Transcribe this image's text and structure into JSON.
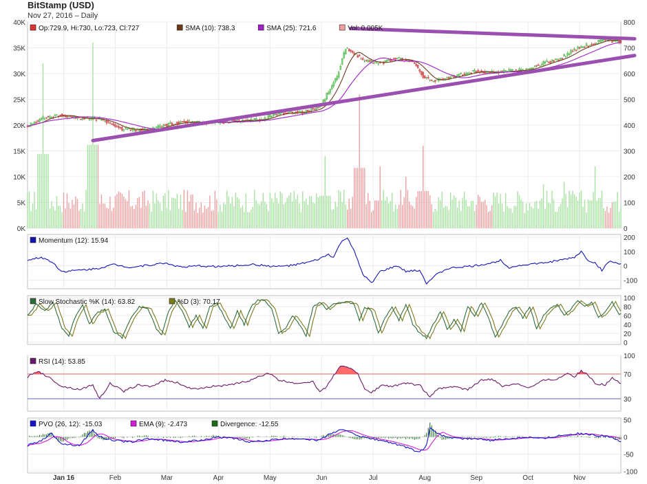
{
  "header": {
    "title": "BitStamp (USD)",
    "subtitle": "Nov 27, 2016 – Daily"
  },
  "colors": {
    "up": "#7fd37a",
    "down": "#e06767",
    "sma10": "#6b3a1a",
    "sma25": "#a020c8",
    "trend": "#9b4fb0",
    "momentum": "#1414b4",
    "stoch_k": "#2f6b3a",
    "stoch_d": "#7a7a1a",
    "rsi": "#6a1a6a",
    "rsi_fill": "#ff5050",
    "pvo": "#1414c8",
    "ema": "#d21ed2",
    "divergence": "#1a6b1a",
    "volume_up": "#a6e3a0",
    "volume_down": "#f0a0a0"
  },
  "chart_data": [
    {
      "id": "price",
      "type": "candlestick",
      "legend": [
        {
          "label": "Op:729.9, Hi:730, Lo:723, Cl:727",
          "color": "#e03030"
        },
        {
          "label": "SMA (10): 738.3",
          "color": "#6b3a1a"
        },
        {
          "label": "SMA (25): 721.6",
          "color": "#a020c8"
        },
        {
          "label": "Vol: 0.005K",
          "color": "#f0a0a0"
        }
      ],
      "x_labels": [
        "Jan 16",
        "Feb",
        "Mar",
        "Apr",
        "May",
        "Jun",
        "Jul",
        "Aug",
        "Sep",
        "Oct",
        "Nov"
      ],
      "y_left_ticks": [
        "0K",
        "5K",
        "10K",
        "15K",
        "20K",
        "25K",
        "30K",
        "35K",
        "40K"
      ],
      "y_right_ticks": [
        0,
        100,
        200,
        300,
        400,
        500,
        600,
        700,
        800
      ],
      "ylim_price": [
        0,
        800
      ],
      "ylim_volume": [
        0,
        40000
      ],
      "price_anchors": [
        [
          0,
          395
        ],
        [
          10,
          430
        ],
        [
          20,
          440
        ],
        [
          30,
          425
        ],
        [
          40,
          425
        ],
        [
          45,
          415
        ],
        [
          55,
          385
        ],
        [
          70,
          380
        ],
        [
          80,
          400
        ],
        [
          90,
          412
        ],
        [
          110,
          410
        ],
        [
          125,
          418
        ],
        [
          135,
          420
        ],
        [
          145,
          445
        ],
        [
          160,
          450
        ],
        [
          170,
          470
        ],
        [
          175,
          530
        ],
        [
          180,
          590
        ],
        [
          185,
          700
        ],
        [
          190,
          680
        ],
        [
          195,
          650
        ],
        [
          205,
          640
        ],
        [
          215,
          660
        ],
        [
          225,
          640
        ],
        [
          230,
          590
        ],
        [
          235,
          570
        ],
        [
          245,
          585
        ],
        [
          255,
          600
        ],
        [
          260,
          610
        ],
        [
          270,
          603
        ],
        [
          280,
          610
        ],
        [
          290,
          615
        ],
        [
          300,
          640
        ],
        [
          310,
          660
        ],
        [
          320,
          700
        ],
        [
          330,
          720
        ],
        [
          335,
          735
        ],
        [
          340,
          725
        ]
      ],
      "volume_spikes": [
        [
          9,
          32000
        ],
        [
          38,
          36000
        ],
        [
          173,
          14000
        ],
        [
          193,
          26000
        ],
        [
          205,
          12000
        ],
        [
          220,
          10000
        ],
        [
          230,
          16000
        ],
        [
          300,
          8500
        ],
        [
          312,
          9000
        ],
        [
          330,
          12000
        ]
      ],
      "trendlines": [
        {
          "x": [
            38,
            345
          ],
          "y": [
            340,
            670
          ]
        },
        {
          "x": [
            188,
            345
          ],
          "y": [
            775,
            735
          ]
        }
      ]
    },
    {
      "id": "momentum",
      "type": "line",
      "legend": [
        {
          "label": "Momentum (12): 15.94",
          "color": "#1414b4"
        }
      ],
      "y_ticks": [
        200,
        100,
        0,
        -100
      ],
      "ylim": [
        -160,
        220
      ],
      "anchors": [
        [
          0,
          40
        ],
        [
          8,
          60
        ],
        [
          14,
          30
        ],
        [
          20,
          -40
        ],
        [
          30,
          -30
        ],
        [
          40,
          -20
        ],
        [
          50,
          10
        ],
        [
          60,
          -10
        ],
        [
          70,
          5
        ],
        [
          80,
          20
        ],
        [
          90,
          -10
        ],
        [
          100,
          0
        ],
        [
          110,
          -5
        ],
        [
          120,
          0
        ],
        [
          130,
          10
        ],
        [
          145,
          -5
        ],
        [
          155,
          5
        ],
        [
          165,
          30
        ],
        [
          170,
          50
        ],
        [
          175,
          80
        ],
        [
          178,
          60
        ],
        [
          182,
          160
        ],
        [
          186,
          200
        ],
        [
          190,
          100
        ],
        [
          195,
          -60
        ],
        [
          200,
          -120
        ],
        [
          205,
          -40
        ],
        [
          210,
          -20
        ],
        [
          215,
          0
        ],
        [
          220,
          -40
        ],
        [
          228,
          -30
        ],
        [
          232,
          -120
        ],
        [
          238,
          -60
        ],
        [
          244,
          -20
        ],
        [
          250,
          -10
        ],
        [
          260,
          0
        ],
        [
          270,
          20
        ],
        [
          275,
          40
        ],
        [
          280,
          -10
        ],
        [
          290,
          10
        ],
        [
          300,
          20
        ],
        [
          310,
          40
        ],
        [
          318,
          60
        ],
        [
          322,
          100
        ],
        [
          326,
          40
        ],
        [
          330,
          20
        ],
        [
          334,
          -30
        ],
        [
          338,
          30
        ],
        [
          345,
          15
        ]
      ]
    },
    {
      "id": "stochastic",
      "type": "line",
      "legend": [
        {
          "label": "Slow Stochastic %K (14): 63.82",
          "color": "#2f6b3a"
        },
        {
          "label": "%D (3): 70.17",
          "color": "#7a7a1a"
        }
      ],
      "y_ticks": [
        100,
        80,
        60,
        40,
        20,
        0
      ],
      "ylim": [
        -5,
        105
      ],
      "anchors": [
        [
          0,
          60
        ],
        [
          5,
          85
        ],
        [
          10,
          70
        ],
        [
          15,
          90
        ],
        [
          20,
          30
        ],
        [
          24,
          15
        ],
        [
          28,
          60
        ],
        [
          32,
          85
        ],
        [
          36,
          40
        ],
        [
          40,
          65
        ],
        [
          45,
          75
        ],
        [
          50,
          25
        ],
        [
          55,
          10
        ],
        [
          60,
          55
        ],
        [
          65,
          80
        ],
        [
          70,
          75
        ],
        [
          75,
          30
        ],
        [
          78,
          15
        ],
        [
          82,
          70
        ],
        [
          86,
          95
        ],
        [
          90,
          70
        ],
        [
          94,
          35
        ],
        [
          98,
          60
        ],
        [
          102,
          30
        ],
        [
          106,
          80
        ],
        [
          110,
          90
        ],
        [
          114,
          60
        ],
        [
          118,
          30
        ],
        [
          122,
          70
        ],
        [
          126,
          40
        ],
        [
          130,
          80
        ],
        [
          134,
          95
        ],
        [
          138,
          95
        ],
        [
          142,
          75
        ],
        [
          146,
          20
        ],
        [
          150,
          30
        ],
        [
          154,
          60
        ],
        [
          158,
          40
        ],
        [
          162,
          15
        ],
        [
          166,
          80
        ],
        [
          170,
          90
        ],
        [
          174,
          75
        ],
        [
          178,
          85
        ],
        [
          182,
          90
        ],
        [
          186,
          92
        ],
        [
          190,
          85
        ],
        [
          193,
          50
        ],
        [
          196,
          80
        ],
        [
          200,
          70
        ],
        [
          204,
          20
        ],
        [
          208,
          55
        ],
        [
          212,
          80
        ],
        [
          216,
          50
        ],
        [
          220,
          85
        ],
        [
          224,
          40
        ],
        [
          228,
          20
        ],
        [
          232,
          10
        ],
        [
          236,
          40
        ],
        [
          240,
          70
        ],
        [
          244,
          30
        ],
        [
          248,
          50
        ],
        [
          252,
          25
        ],
        [
          256,
          80
        ],
        [
          260,
          60
        ],
        [
          264,
          90
        ],
        [
          268,
          55
        ],
        [
          272,
          10
        ],
        [
          276,
          40
        ],
        [
          280,
          70
        ],
        [
          284,
          80
        ],
        [
          288,
          55
        ],
        [
          292,
          80
        ],
        [
          296,
          30
        ],
        [
          300,
          60
        ],
        [
          304,
          75
        ],
        [
          308,
          85
        ],
        [
          312,
          60
        ],
        [
          316,
          75
        ],
        [
          320,
          95
        ],
        [
          324,
          80
        ],
        [
          328,
          90
        ],
        [
          332,
          55
        ],
        [
          336,
          70
        ],
        [
          340,
          90
        ],
        [
          344,
          64
        ],
        [
          345,
          64
        ]
      ],
      "lag": 2
    },
    {
      "id": "rsi",
      "type": "line",
      "legend": [
        {
          "label": "RSI (14): 53.85",
          "color": "#6a1a6a"
        }
      ],
      "y_ticks": [
        100,
        70,
        30
      ],
      "ylim": [
        10,
        100
      ],
      "bands": [
        70,
        30
      ],
      "anchors": [
        [
          0,
          65
        ],
        [
          6,
          75
        ],
        [
          12,
          65
        ],
        [
          20,
          50
        ],
        [
          30,
          45
        ],
        [
          38,
          52
        ],
        [
          42,
          30
        ],
        [
          48,
          55
        ],
        [
          56,
          42
        ],
        [
          64,
          52
        ],
        [
          72,
          50
        ],
        [
          80,
          60
        ],
        [
          88,
          55
        ],
        [
          96,
          45
        ],
        [
          106,
          50
        ],
        [
          118,
          52
        ],
        [
          130,
          60
        ],
        [
          140,
          72
        ],
        [
          146,
          60
        ],
        [
          156,
          55
        ],
        [
          166,
          58
        ],
        [
          170,
          40
        ],
        [
          174,
          50
        ],
        [
          178,
          68
        ],
        [
          182,
          82
        ],
        [
          188,
          80
        ],
        [
          192,
          72
        ],
        [
          196,
          45
        ],
        [
          200,
          40
        ],
        [
          206,
          52
        ],
        [
          212,
          50
        ],
        [
          220,
          55
        ],
        [
          228,
          52
        ],
        [
          234,
          32
        ],
        [
          238,
          45
        ],
        [
          246,
          50
        ],
        [
          256,
          45
        ],
        [
          264,
          60
        ],
        [
          270,
          62
        ],
        [
          276,
          50
        ],
        [
          284,
          55
        ],
        [
          292,
          48
        ],
        [
          300,
          60
        ],
        [
          308,
          62
        ],
        [
          314,
          72
        ],
        [
          318,
          66
        ],
        [
          322,
          75
        ],
        [
          326,
          68
        ],
        [
          330,
          55
        ],
        [
          336,
          52
        ],
        [
          340,
          65
        ],
        [
          345,
          54
        ]
      ]
    },
    {
      "id": "pvo",
      "type": "line",
      "legend": [
        {
          "label": "PVO (26, 12): -15.03",
          "color": "#1414c8"
        },
        {
          "label": "EMA (9): -2.473",
          "color": "#d21ed2"
        },
        {
          "label": "Divergence: -12.55",
          "color": "#1a6b1a"
        }
      ],
      "y_ticks": [
        50,
        0,
        -50,
        -100
      ],
      "ylim": [
        -105,
        55
      ],
      "anchors": [
        [
          0,
          -25
        ],
        [
          8,
          -10
        ],
        [
          14,
          10
        ],
        [
          20,
          -20
        ],
        [
          30,
          -25
        ],
        [
          38,
          20
        ],
        [
          42,
          0
        ],
        [
          50,
          -10
        ],
        [
          60,
          -15
        ],
        [
          70,
          -5
        ],
        [
          80,
          -10
        ],
        [
          90,
          -15
        ],
        [
          100,
          -10
        ],
        [
          110,
          0
        ],
        [
          120,
          -5
        ],
        [
          130,
          -15
        ],
        [
          140,
          -10
        ],
        [
          150,
          -5
        ],
        [
          160,
          -5
        ],
        [
          170,
          -10
        ],
        [
          176,
          10
        ],
        [
          182,
          20
        ],
        [
          188,
          15
        ],
        [
          194,
          0
        ],
        [
          200,
          -5
        ],
        [
          210,
          -15
        ],
        [
          220,
          -30
        ],
        [
          228,
          -45
        ],
        [
          232,
          -25
        ],
        [
          234,
          25
        ],
        [
          240,
          5
        ],
        [
          250,
          -5
        ],
        [
          260,
          -5
        ],
        [
          270,
          -10
        ],
        [
          280,
          -5
        ],
        [
          290,
          0
        ],
        [
          300,
          -5
        ],
        [
          310,
          5
        ],
        [
          320,
          10
        ],
        [
          330,
          5
        ],
        [
          340,
          0
        ],
        [
          345,
          -15
        ]
      ]
    }
  ]
}
